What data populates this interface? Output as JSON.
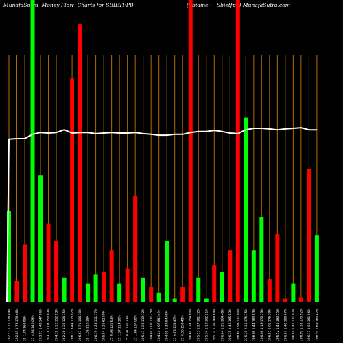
{
  "chart_data": {
    "type": "bar",
    "title": "MunafaSutra  Money Flow  Charts for SBIETFPB",
    "subtitle": "(Sbiame -   Sbietfpb) MunafaSutra.com",
    "ylim": [
      0,
      100
    ],
    "grid": true,
    "colors": {
      "up": "#00ff00",
      "down": "#ff0000",
      "line": "#ffffff",
      "grid": "#b36b00",
      "background": "#000000"
    },
    "categories": [
      "202.53 1.11 178.49%",
      "202.83 1.73 176.46%",
      "25 1.74 163.95%",
      "25 4.84 146.09%",
      "203.93 1.43 147.06%",
      "203.70 1.04 150.93%",
      "204.18 1.12 152.93%",
      "202.26 1.25 128.35%",
      "206.73 3.44 115.02%",
      "206.63 3.71 108.30%",
      "25 1.06 110.15%",
      "206.59 1.28 111.77%",
      "205.84 1.25 62.80%",
      "25 0.93 125.63%",
      "25 1.07 114.30%",
      "25 0.91 135.23%",
      "25 1.44 137.08%",
      "205.43 1.23 119.12%",
      "204.48 1.08 137.25%",
      "204.24 1.07 88.54%",
      "204.59 1.39 94.08%",
      "25 0.78 153.47%",
      "25 0.35 153.49%",
      "206.60 1.34 158.80%",
      "205.53 1.27 181.12%",
      "205.74 1.10 162.21%",
      "205.70 1.38 168.84%",
      "206.64 1.26 164.48%",
      "206.78 1.46 165.83%",
      "206.60 1.93 171.80%",
      "215.39 2.15 175.75%",
      "206.08 1.44 180.83%",
      "206.08 1.19 170.53%",
      "206.82 1.01 176.39%",
      "206.52 1.45 180.55%",
      "206.67 1.42 180.67%",
      "206.80 1.41 171.02%",
      "206.90 1.35 175.92%",
      "206.77 1.58 161.56%",
      "206.59 1.69 160.42%"
    ],
    "series": [
      {
        "type": "bar",
        "values": [
          30,
          7,
          19,
          100,
          42,
          26,
          20,
          8,
          74,
          92,
          6,
          9,
          10,
          17,
          6,
          11,
          35,
          8,
          5,
          3,
          20,
          1,
          5,
          100,
          8,
          1,
          12,
          10,
          17,
          100,
          61,
          17,
          28,
          7.5,
          22.5,
          1,
          6,
          1.5,
          44,
          22
        ],
        "direction": [
          "up",
          "down",
          "down",
          "up",
          "up",
          "down",
          "down",
          "up",
          "down",
          "down",
          "up",
          "up",
          "down",
          "down",
          "up",
          "down",
          "down",
          "up",
          "down",
          "up",
          "up",
          "up",
          "down",
          "down",
          "up",
          "up",
          "down",
          "up",
          "down",
          "down",
          "up",
          "up",
          "up",
          "down",
          "down",
          "down",
          "up",
          "down",
          "down",
          "up"
        ]
      },
      {
        "type": "line",
        "values": [
          53.9,
          54.1,
          54.1,
          55.5,
          56.1,
          55.9,
          56.1,
          57.0,
          55.9,
          56.1,
          56.1,
          55.7,
          55.9,
          56.1,
          55.9,
          55.9,
          56.1,
          55.7,
          55.5,
          55.2,
          55.2,
          55.5,
          55.5,
          56.1,
          56.4,
          56.4,
          56.8,
          56.4,
          55.9,
          55.7,
          57.0,
          57.5,
          57.5,
          57.3,
          57.0,
          57.3,
          57.5,
          57.7,
          57.0,
          57.0
        ]
      }
    ]
  }
}
